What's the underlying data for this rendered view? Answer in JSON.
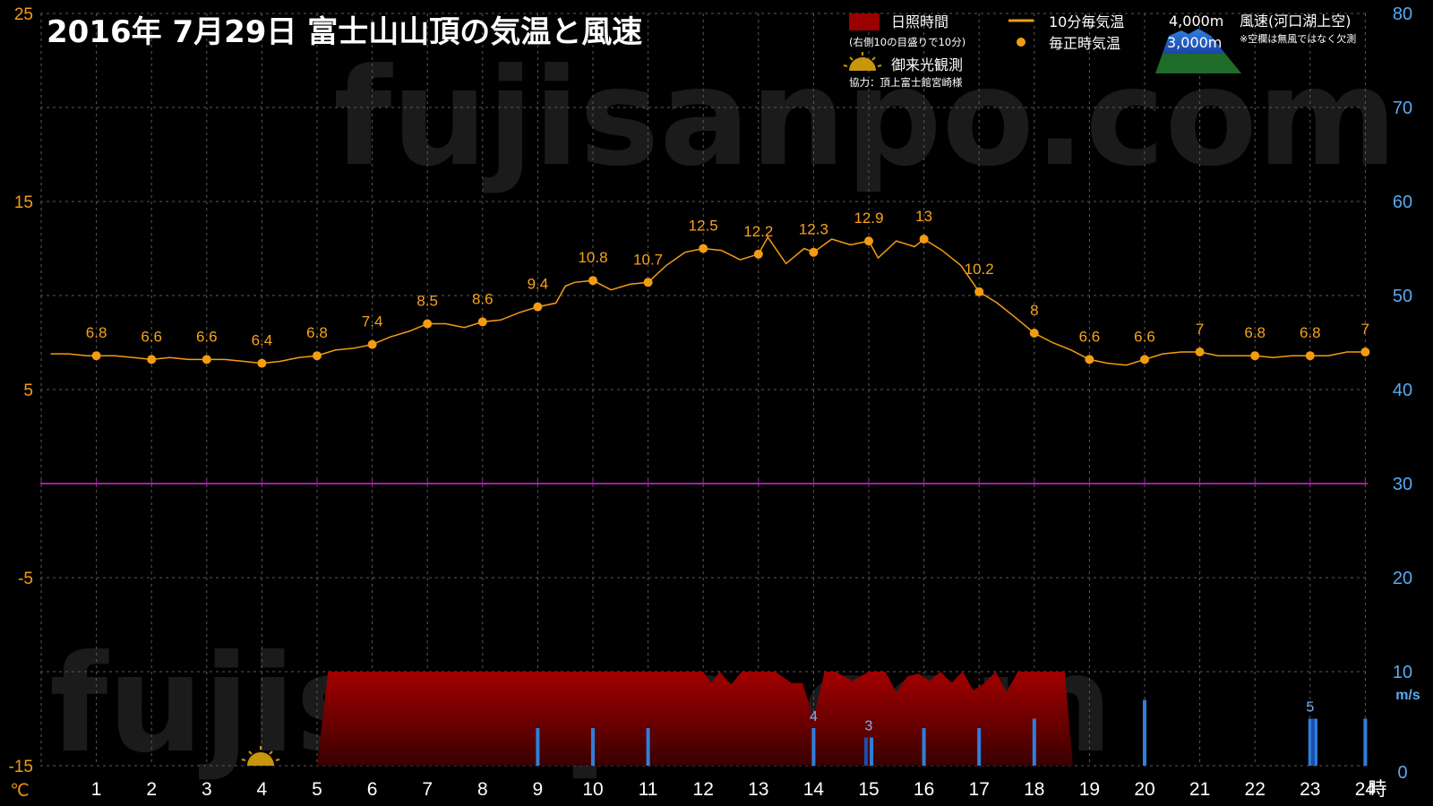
{
  "title": "2016年  7月29日   富士山山頂の気温と風速",
  "watermark": "fujisanpo.com",
  "legend": {
    "sunshine": "日照時間",
    "sunshine_note": "(右側10の目盛りで10分)",
    "temp10": "10分毎気温",
    "temp_hourly": "毎正時気温",
    "sunrise": "御来光観測",
    "credit": "協力：頂上富士館宮崎様",
    "alt4000": "4,000m",
    "alt3000": "3,000m",
    "wind_title": "風速(河口湖上空)",
    "wind_note": "※空欄は無風ではなく欠測"
  },
  "colors": {
    "background": "#000000",
    "temp": "#f39c12",
    "sunshine": "#9b0000",
    "wind4000": "#2f7fdc",
    "wind3000": "#1a4fae",
    "zero_line": "#a020a0",
    "left_axis": "#f39c12",
    "right_axis": "#5aa9f0"
  },
  "chart_data": {
    "type": "line",
    "title": "2016年  7月29日   富士山山頂の気温と風速",
    "x_ticks": [
      "1",
      "2",
      "3",
      "4",
      "5",
      "6",
      "7",
      "8",
      "9",
      "10",
      "11",
      "12",
      "13",
      "14",
      "15",
      "16",
      "17",
      "18",
      "19",
      "20",
      "21",
      "22",
      "23",
      "24"
    ],
    "x_unit": "時",
    "y_left_ticks": [
      "25",
      "15",
      "5",
      "-5",
      "-15"
    ],
    "y_left_unit": "℃",
    "y_left_range": [
      -15,
      25
    ],
    "y_right_ticks": [
      "80",
      "70",
      "60",
      "50",
      "40",
      "30",
      "20",
      "10",
      "0"
    ],
    "y_right_unit": "m/s",
    "y_right_range": [
      0,
      10
    ],
    "grid": true,
    "hourly_temp": {
      "x": [
        1,
        2,
        3,
        4,
        5,
        6,
        7,
        8,
        9,
        10,
        11,
        12,
        13,
        14,
        15,
        16,
        17,
        18,
        19,
        20,
        21,
        22,
        23,
        24
      ],
      "values": [
        6.8,
        6.6,
        6.6,
        6.4,
        6.8,
        7.4,
        8.5,
        8.6,
        9.4,
        10.8,
        10.7,
        12.5,
        12.2,
        12.3,
        12.9,
        13,
        10.2,
        8,
        6.6,
        6.6,
        7,
        6.8,
        6.8,
        7
      ],
      "labels": [
        "6.8",
        "6.6",
        "6.6",
        "6.4",
        "6.8",
        "7.4",
        "8.5",
        "8.6",
        "9.4",
        "10.8",
        "10.7",
        "12.5",
        "12.2",
        "12.3",
        "12.9",
        "13",
        "10.2",
        "8",
        "6.6",
        "6.6",
        "7",
        "6.8",
        "6.8",
        "7"
      ]
    },
    "temp_10min": {
      "x": [
        0.17,
        0.5,
        0.83,
        1,
        1.33,
        1.67,
        2,
        2.33,
        2.67,
        3,
        3.33,
        3.67,
        4,
        4.33,
        4.67,
        5,
        5.33,
        5.67,
        6,
        6.33,
        6.67,
        7,
        7.33,
        7.67,
        8,
        8.33,
        8.67,
        9,
        9.33,
        9.5,
        9.67,
        10,
        10.33,
        10.67,
        11,
        11.33,
        11.67,
        12,
        12.33,
        12.67,
        13,
        13.17,
        13.5,
        13.83,
        14,
        14.33,
        14.67,
        15,
        15.17,
        15.5,
        15.83,
        16,
        16.33,
        16.67,
        17,
        17.33,
        17.67,
        18,
        18.33,
        18.67,
        19,
        19.33,
        19.67,
        20,
        20.33,
        20.67,
        21,
        21.33,
        21.67,
        22,
        22.33,
        22.67,
        23,
        23.33,
        23.67,
        24
      ],
      "values": [
        6.9,
        6.9,
        6.8,
        6.8,
        6.8,
        6.7,
        6.6,
        6.7,
        6.6,
        6.6,
        6.6,
        6.5,
        6.4,
        6.5,
        6.7,
        6.8,
        7.1,
        7.2,
        7.4,
        7.8,
        8.1,
        8.5,
        8.5,
        8.3,
        8.6,
        8.7,
        9.1,
        9.4,
        9.6,
        10.5,
        10.7,
        10.8,
        10.3,
        10.6,
        10.7,
        11.6,
        12.3,
        12.5,
        12.4,
        11.9,
        12.2,
        13.1,
        11.7,
        12.5,
        12.3,
        13.0,
        12.7,
        12.9,
        12.0,
        12.9,
        12.6,
        13,
        12.4,
        11.6,
        10.2,
        9.6,
        8.8,
        8,
        7.5,
        7.1,
        6.6,
        6.4,
        6.3,
        6.6,
        6.9,
        7,
        7,
        6.8,
        6.8,
        6.8,
        6.7,
        6.8,
        6.8,
        6.8,
        7.0,
        7
      ]
    },
    "sunshine_minutes": {
      "x": [
        5.0,
        5.2,
        5.5,
        6,
        7,
        8,
        9,
        10,
        11,
        11.5,
        12,
        12.15,
        12.3,
        12.5,
        12.7,
        13,
        13.3,
        13.6,
        13.8,
        14,
        14.2,
        14.4,
        14.7,
        15,
        15.3,
        15.5,
        15.7,
        15.9,
        16.1,
        16.3,
        16.5,
        16.7,
        16.9,
        17.1,
        17.3,
        17.5,
        17.7,
        17.9,
        18.2,
        18.55,
        18.7
      ],
      "values": [
        0,
        10,
        10,
        10,
        10,
        10,
        10,
        10,
        10,
        10,
        10,
        8.8,
        10,
        8.6,
        10,
        10,
        10,
        8.8,
        8.8,
        5.0,
        10,
        10,
        9.0,
        10,
        10,
        7.8,
        9.5,
        9.8,
        9.0,
        10,
        8.8,
        10,
        8.0,
        8.8,
        10,
        7.8,
        10,
        10,
        10,
        10,
        0
      ]
    },
    "wind_4000m": {
      "x": [
        9,
        10,
        11,
        14,
        15.05,
        16,
        17,
        18,
        20,
        23,
        23.1,
        24
      ],
      "values": [
        4,
        4,
        4,
        4,
        3,
        4,
        4,
        5,
        7,
        5,
        5,
        5
      ],
      "labels": {
        "14": "4",
        "15": "3",
        "23": "5"
      }
    },
    "wind_3000m": {
      "x": [
        14.95,
        23.05
      ],
      "values": [
        3,
        5
      ]
    }
  }
}
